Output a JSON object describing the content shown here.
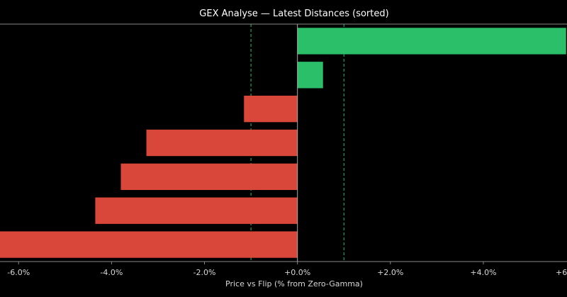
{
  "chart_data": {
    "type": "bar",
    "orientation": "horizontal",
    "title": "GEX Analyse — Latest Distances (sorted)",
    "xlabel": "Price vs Flip (% from Zero-Gamma)",
    "ylabel": "",
    "xlim": [
      -6.4,
      5.8
    ],
    "x_ticks": [
      -6,
      -4,
      -2,
      0,
      2,
      4,
      6
    ],
    "x_tick_labels": [
      "-6.0%",
      "-4.0%",
      "-2.0%",
      "+0.0%",
      "+2.0%",
      "+4.0%",
      "+6"
    ],
    "values": [
      5.78,
      0.55,
      -1.15,
      -3.25,
      -3.8,
      -4.35,
      -6.6
    ],
    "reference_lines": [
      -1.0,
      1.0
    ],
    "colors": {
      "positive": "#2bbf6a",
      "negative": "#d9473b",
      "reference": "#2bbf6a",
      "zero_line": "#aaaaaa",
      "axis": "#888888"
    },
    "grid": false,
    "legend": "none"
  }
}
